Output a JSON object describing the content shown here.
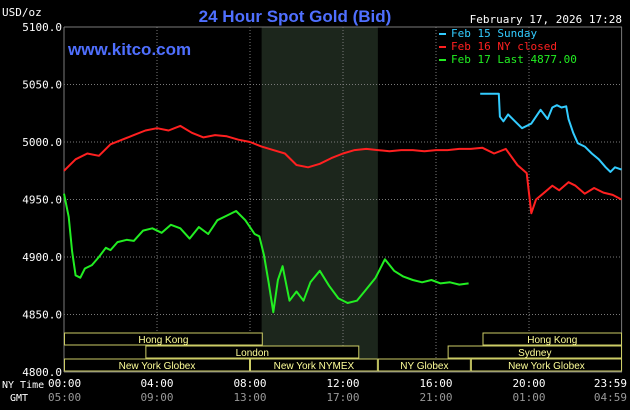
{
  "header": {
    "units": "USD/oz",
    "title": "24 Hour Spot Gold (Bid)",
    "datetime": "February 17, 2026 17:28",
    "website": "www.kitco.com"
  },
  "legend": [
    {
      "label": "Feb 15 Sunday",
      "color": "#33ccff"
    },
    {
      "label": "Feb 16 NY closed",
      "color": "#ff2020"
    },
    {
      "label": "Feb 17 Last 4877.00",
      "color": "#22ee22"
    }
  ],
  "colors": {
    "background": "#000000",
    "grid": "#7a7a7a",
    "text": "#ffffff",
    "title": "#4f6fff",
    "session_highlight": "#1c261c",
    "session_bar_border": "#cccc66",
    "session_bar_text": "#ffff99",
    "gmt_text": "#999999"
  },
  "sessions": [
    {
      "label": "Hong Kong",
      "start": 0,
      "end": 8.55,
      "row": 0
    },
    {
      "label": "London",
      "start": 3.5,
      "end": 12.7,
      "row": 1
    },
    {
      "label": "New York Globex",
      "start": 0,
      "end": 8.0,
      "row": 2
    },
    {
      "label": "New York NYMEX",
      "start": 8.0,
      "end": 13.5,
      "row": 2
    },
    {
      "label": "NY Globex",
      "start": 13.5,
      "end": 17.5,
      "row": 2
    },
    {
      "label": "Hong Kong",
      "start": 18.0,
      "end": 24.0,
      "row": 0
    },
    {
      "label": "Sydney",
      "start": 16.5,
      "end": 24.0,
      "row": 1
    },
    {
      "label": "New York Globex",
      "start": 17.5,
      "end": 24.0,
      "row": 2
    }
  ],
  "time_labels": {
    "ny_label": "NY Time",
    "gmt_label": "GMT",
    "ny": [
      "00:00",
      "04:00",
      "08:00",
      "12:00",
      "16:00",
      "20:00",
      "23:59"
    ],
    "gmt": [
      "05:00",
      "09:00",
      "13:00",
      "17:00",
      "21:00",
      "01:00",
      "04:59"
    ]
  },
  "chart_data": {
    "type": "line",
    "title": "24 Hour Spot Gold (Bid)",
    "ylabel": "USD/oz",
    "xlabel": "NY Time",
    "xlim": [
      0,
      24
    ],
    "ylim": [
      4800,
      5100
    ],
    "yticks": [
      "5100.0",
      "5050.0",
      "5000.0",
      "4950.0",
      "4900.0",
      "4850.0",
      "4800.0"
    ],
    "ytick_values": [
      5100,
      5050,
      5000,
      4950,
      4900,
      4850,
      4800
    ],
    "xtick_values": [
      0,
      4,
      8,
      12,
      16,
      20,
      23.983
    ],
    "highlight_range": [
      8.5,
      13.5
    ],
    "grid": true,
    "series": [
      {
        "name": "Feb 15 Sunday",
        "color": "#33ccff",
        "x": [
          17.9,
          18.7,
          18.75,
          18.9,
          19.1,
          19.4,
          19.7,
          20.1,
          20.5,
          20.8,
          21.0,
          21.2,
          21.4,
          21.6,
          21.7,
          21.9,
          22.1,
          22.4,
          22.7,
          23.0,
          23.3,
          23.5,
          23.7,
          23.98
        ],
        "y": [
          5042,
          5042,
          5022,
          5018,
          5024,
          5018,
          5012,
          5016,
          5028,
          5020,
          5030,
          5032,
          5030,
          5031,
          5020,
          5008,
          4999,
          4996,
          4990,
          4985,
          4978,
          4974,
          4978,
          4976
        ]
      },
      {
        "name": "Feb 16 NY closed",
        "color": "#ff2020",
        "x": [
          0,
          0.5,
          1.0,
          1.5,
          2.0,
          2.5,
          3.0,
          3.5,
          4.0,
          4.5,
          5.0,
          5.5,
          6.0,
          6.5,
          7.0,
          7.5,
          8.0,
          8.5,
          9.0,
          9.5,
          10.0,
          10.5,
          11.0,
          11.5,
          12.0,
          12.5,
          13.0,
          13.5,
          14.0,
          14.5,
          15.0,
          15.5,
          16.0,
          16.5,
          17.0,
          17.5,
          18.0,
          18.5,
          19.0,
          19.5,
          19.9,
          20.1,
          20.3,
          20.6,
          21.0,
          21.3,
          21.7,
          22.0,
          22.4,
          22.8,
          23.2,
          23.6,
          23.98
        ],
        "y": [
          4975,
          4985,
          4990,
          4988,
          4998,
          5002,
          5006,
          5010,
          5012,
          5010,
          5014,
          5008,
          5004,
          5006,
          5005,
          5002,
          5000,
          4996,
          4993,
          4990,
          4980,
          4978,
          4981,
          4986,
          4990,
          4993,
          4994,
          4993,
          4992,
          4993,
          4993,
          4992,
          4993,
          4993,
          4994,
          4994,
          4995,
          4990,
          4994,
          4980,
          4973,
          4938,
          4950,
          4955,
          4962,
          4958,
          4965,
          4962,
          4955,
          4960,
          4956,
          4954,
          4950
        ]
      },
      {
        "name": "Feb 17 Last 4877.00",
        "color": "#22ee22",
        "x": [
          0,
          0.2,
          0.35,
          0.5,
          0.7,
          0.9,
          1.2,
          1.5,
          1.8,
          2.0,
          2.3,
          2.7,
          3.0,
          3.4,
          3.8,
          4.2,
          4.6,
          5.0,
          5.4,
          5.8,
          6.2,
          6.6,
          7.0,
          7.4,
          7.8,
          8.2,
          8.4,
          8.6,
          8.8,
          9.0,
          9.2,
          9.4,
          9.7,
          10.0,
          10.3,
          10.6,
          11.0,
          11.4,
          11.8,
          12.2,
          12.6,
          13.0,
          13.4,
          13.8,
          14.2,
          14.6,
          15.0,
          15.4,
          15.8,
          16.2,
          16.6,
          17.0,
          17.4
        ],
        "y": [
          4955,
          4935,
          4905,
          4884,
          4882,
          4890,
          4893,
          4900,
          4908,
          4906,
          4913,
          4915,
          4914,
          4923,
          4925,
          4921,
          4928,
          4925,
          4916,
          4926,
          4920,
          4932,
          4936,
          4940,
          4932,
          4920,
          4918,
          4902,
          4878,
          4852,
          4880,
          4892,
          4862,
          4870,
          4862,
          4878,
          4888,
          4875,
          4864,
          4860,
          4862,
          4872,
          4882,
          4898,
          4888,
          4883,
          4880,
          4878,
          4880,
          4877,
          4878,
          4876,
          4877
        ]
      }
    ]
  }
}
